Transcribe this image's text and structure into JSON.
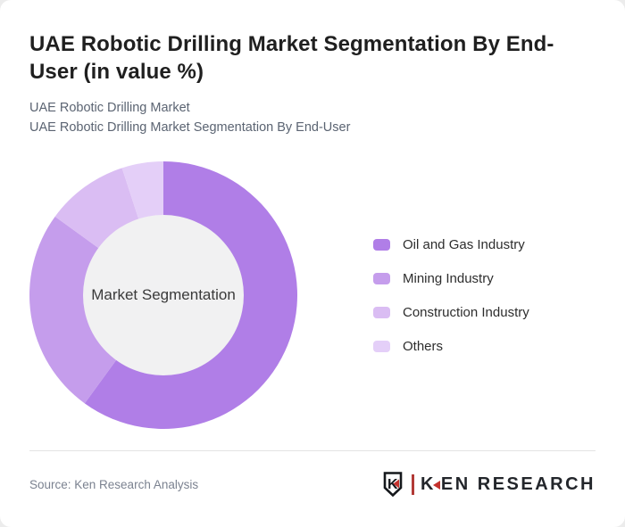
{
  "header": {
    "title": "UAE Robotic Drilling Market Segmentation By End-User (in value %)",
    "subtitle_lines": [
      "UAE Robotic Drilling Market",
      "UAE Robotic Drilling Market Segmentation By End-User"
    ]
  },
  "chart_data": {
    "type": "pie",
    "donut": true,
    "title": "UAE Robotic Drilling Market Segmentation By End-User (in value %)",
    "center_label": "Market Segmentation",
    "categories": [
      "Oil and Gas Industry",
      "Mining Industry",
      "Construction Industry",
      "Others"
    ],
    "values": [
      60,
      25,
      10,
      5
    ],
    "colors": [
      "#b07ee7",
      "#c59dec",
      "#dabdf3",
      "#e4cff8"
    ],
    "start_angle_deg": 0,
    "direction": "clockwise",
    "inner_radius_ratio": 0.6,
    "inner_circle_color": "#f1f1f2",
    "legend_position": "right",
    "data_labels_shown": false
  },
  "footer": {
    "source": "Source: Ken Research Analysis",
    "logo": {
      "emblem_letter": "K",
      "brand_k": "K",
      "brand_rest": "EN RESEARCH",
      "accent_color": "#c5322d",
      "bar_color": "#b23a36",
      "text_color": "#23262b"
    }
  },
  "colors": {
    "page_bg": "#ececec",
    "card_bg": "#ffffff",
    "divider": "#e3e3e3",
    "title_text": "#1f1f1f",
    "subtitle_text": "#5b6472",
    "source_text": "#7b8290",
    "legend_text": "#2d2d2d"
  }
}
